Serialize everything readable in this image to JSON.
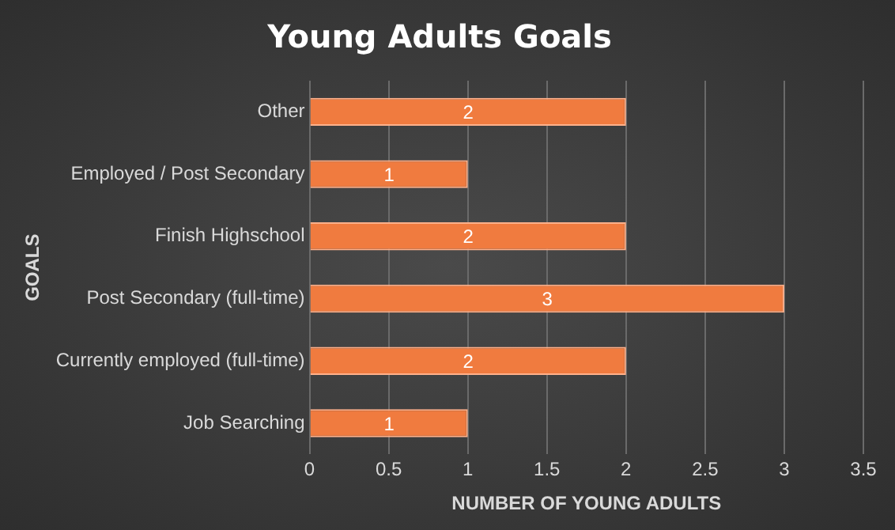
{
  "chart_data": {
    "type": "bar",
    "orientation": "horizontal",
    "title": "Young Adults Goals",
    "xlabel": "NUMBER OF YOUNG ADULTS",
    "ylabel": "GOALS",
    "categories": [
      "Other",
      "Employed / Post Secondary",
      "Finish Highschool",
      "Post Secondary (full-time)",
      "Currently employed (full-time)",
      "Job Searching"
    ],
    "values": [
      2,
      1,
      2,
      3,
      2,
      1
    ],
    "color": "#f07b3f",
    "xlim": [
      0,
      3.5
    ],
    "xticks": [
      0,
      0.5,
      1,
      1.5,
      2,
      2.5,
      3,
      3.5
    ],
    "grid": "x",
    "data_labels": true,
    "legend": false
  }
}
